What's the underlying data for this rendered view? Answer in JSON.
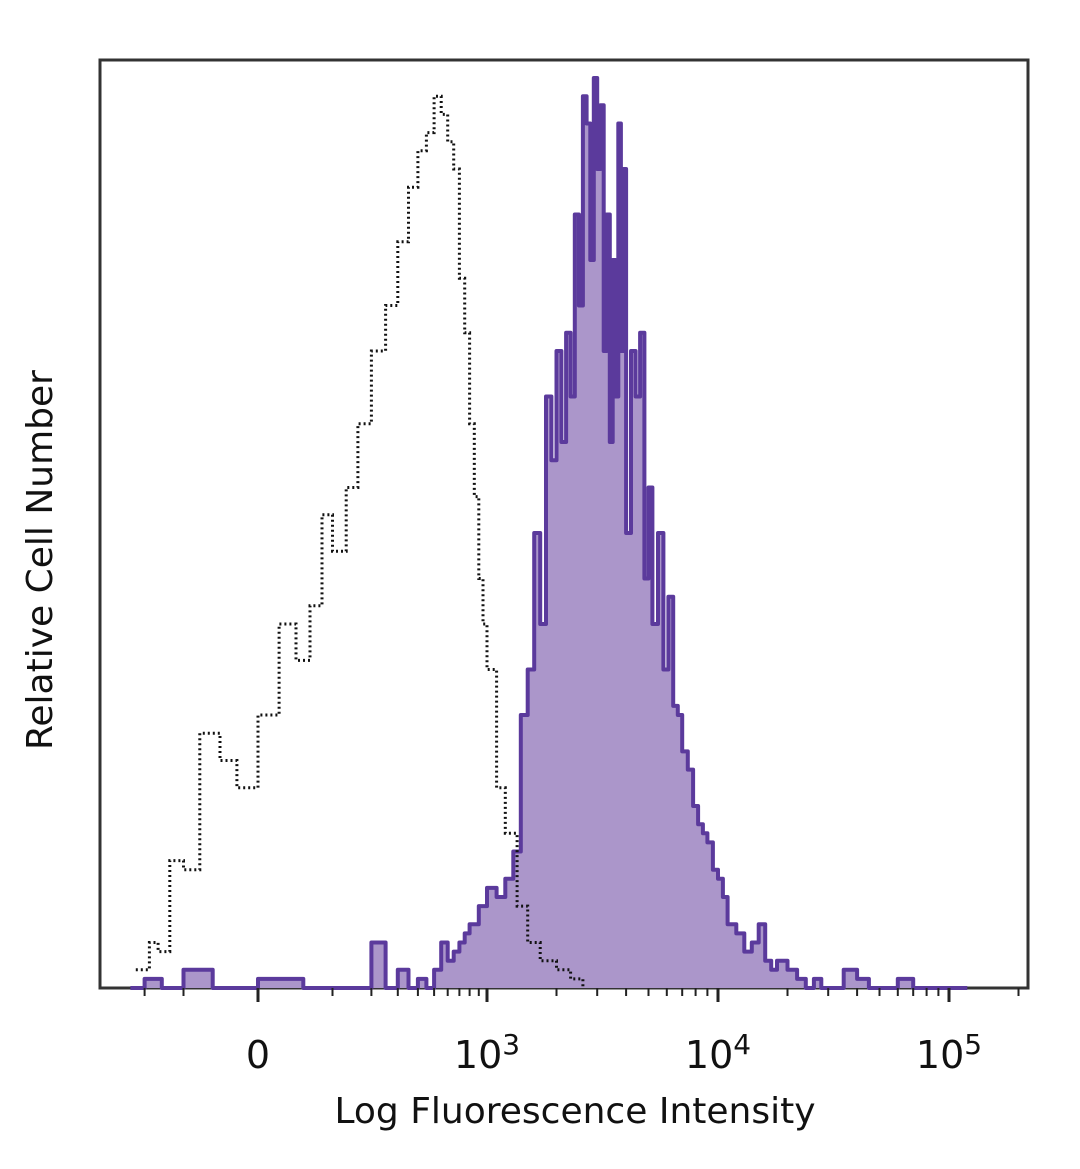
{
  "chart_data": {
    "type": "area",
    "title": "",
    "xlabel": "Log Fluorescence Intensity",
    "ylabel": "Relative Cell Number",
    "xscale": "biexponential",
    "xlim": [
      -300,
      250000
    ],
    "ylim": [
      0,
      100
    ],
    "grid": false,
    "legend": "none",
    "x_tick_labels": [
      {
        "value": 0,
        "label": "0"
      },
      {
        "value": 1000,
        "base": "10",
        "exp": "3"
      },
      {
        "value": 10000,
        "base": "10",
        "exp": "4"
      },
      {
        "value": 100000,
        "base": "10",
        "exp": "5"
      }
    ],
    "series": [
      {
        "style": "dotted-outline",
        "color": "#111111",
        "x": [
          -230,
          -185,
          -160,
          -130,
          -100,
          -70,
          -40,
          -20,
          0,
          20,
          40,
          60,
          80,
          100,
          130,
          160,
          200,
          250,
          300,
          350,
          400,
          450,
          500,
          550,
          600,
          650,
          700,
          750,
          800,
          850,
          900,
          950,
          1000,
          1100,
          1200,
          1350,
          1500,
          1700,
          2000,
          2300,
          2600
        ],
        "y": [
          2,
          5,
          4,
          14,
          13,
          28,
          25,
          22,
          30,
          40,
          36,
          42,
          52,
          48,
          55,
          62,
          70,
          75,
          82,
          88,
          92,
          94,
          98,
          96,
          93,
          90,
          78,
          72,
          62,
          54,
          45,
          40,
          35,
          22,
          17,
          9,
          5,
          3,
          2,
          1,
          0
        ]
      },
      {
        "style": "filled",
        "color": "#5b3a9c",
        "fill": "#ab96ca",
        "x": [
          -250,
          -200,
          -150,
          -100,
          -50,
          0,
          50,
          100,
          150,
          200,
          250,
          300,
          350,
          400,
          450,
          500,
          550,
          600,
          650,
          700,
          750,
          800,
          900,
          1000,
          1100,
          1200,
          1300,
          1400,
          1500,
          1600,
          1700,
          1800,
          1900,
          2000,
          2100,
          2200,
          2300,
          2400,
          2500,
          2600,
          2700,
          2800,
          2900,
          3000,
          3100,
          3200,
          3300,
          3400,
          3500,
          3600,
          3700,
          3800,
          3900,
          4000,
          4200,
          4400,
          4600,
          4800,
          5000,
          5200,
          5500,
          5800,
          6100,
          6400,
          6700,
          7000,
          7400,
          7800,
          8200,
          8600,
          9000,
          9500,
          10000,
          10500,
          11000,
          12000,
          13000,
          14000,
          15000,
          16000,
          17000,
          18000,
          20000,
          22000,
          24000,
          26000,
          28000,
          30000,
          35000,
          40000,
          45000,
          50000,
          60000,
          70000,
          80000,
          90000,
          100000,
          120000
        ],
        "y": [
          0,
          1,
          0,
          2,
          0,
          1,
          0,
          0,
          0,
          5,
          0,
          2,
          0,
          1,
          0,
          2,
          5,
          3,
          4,
          5,
          6,
          7,
          9,
          11,
          10,
          12,
          15,
          30,
          35,
          50,
          40,
          65,
          58,
          70,
          60,
          72,
          65,
          85,
          75,
          98,
          95,
          80,
          100,
          90,
          97,
          70,
          85,
          60,
          80,
          65,
          95,
          70,
          90,
          50,
          70,
          65,
          72,
          45,
          55,
          40,
          50,
          35,
          43,
          31,
          30,
          26,
          24,
          20,
          18,
          17,
          16,
          13,
          12,
          10,
          7,
          6,
          4,
          5,
          7,
          3,
          2,
          3,
          2,
          1,
          0,
          1,
          0,
          0,
          2,
          1,
          0,
          0,
          1,
          0,
          0,
          0,
          0,
          0
        ]
      }
    ]
  }
}
